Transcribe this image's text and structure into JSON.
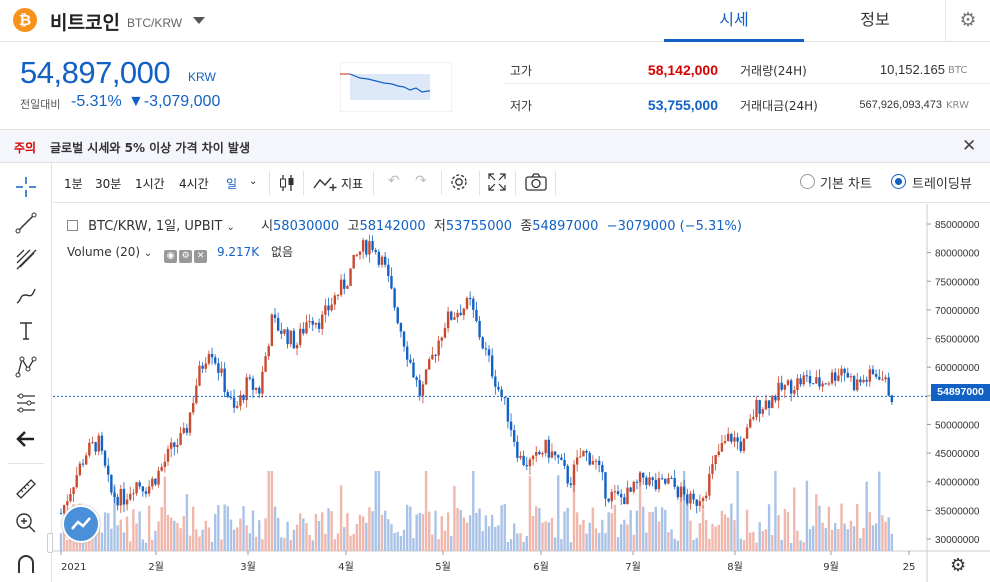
{
  "header": {
    "coin_symbol": "₿",
    "coin_name": "비트코인",
    "pair": "BTC/KRW",
    "tabs": [
      "시세",
      "정보"
    ],
    "active_tab": "시세"
  },
  "ticker": {
    "price": "54,897,000",
    "unit": "KRW",
    "change_label": "전일대비",
    "change_rate": "-5.31%",
    "change_amount": "▼-3,079,000",
    "high_label": "고가",
    "high": "58,142,000",
    "low_label": "저가",
    "low": "53,755,000",
    "volume_label": "거래량(24H)",
    "volume": "10,152.165",
    "volume_unit": "BTC",
    "amount_label": "거래대금(24H)",
    "amount": "567,926,093,473",
    "amount_unit": "KRW"
  },
  "notice": {
    "tag": "주의",
    "text": "글로벌 시세와 5% 이상 가격 차이 발생"
  },
  "toolbar": {
    "timeframes": [
      "1분",
      "30분",
      "1시간",
      "4시간",
      "일"
    ],
    "indicators_label": "지표",
    "chart_type_basic": "기본 차트",
    "chart_type_tv": "트레이딩뷰"
  },
  "legend": {
    "symbol": "BTC/KRW, 1일, UPBIT",
    "open_label": "시",
    "open": "58030000",
    "high_label": "고",
    "high": "58142000",
    "low_label": "저",
    "low": "53755000",
    "close_label": "종",
    "close": "54897000",
    "change": "−3079000 (−5.31%)",
    "volume_label": "Volume (20)",
    "volume_value": "9.217K",
    "volume_extra": "없음"
  },
  "colors": {
    "up": "#c84a31",
    "down": "#1261c4",
    "up_vol": "#f0b7ac",
    "down_vol": "#a9c3e8"
  },
  "chart_data": {
    "type": "candlestick",
    "title": "",
    "y_ticks": [
      "85000000",
      "80000000",
      "75000000",
      "70000000",
      "65000000",
      "60000000",
      "55000000",
      "50000000",
      "45000000",
      "40000000",
      "35000000",
      "30000000"
    ],
    "ylim": [
      28000000,
      88000000
    ],
    "x_ticks": [
      "2021",
      "2월",
      "3월",
      "4월",
      "5월",
      "6월",
      "7월",
      "8월",
      "9월",
      "25"
    ],
    "current_price": "54897000",
    "close_path": [
      34500000,
      40000000,
      45000000,
      47000000,
      38000000,
      37000000,
      40000000,
      39000000,
      42000000,
      46000000,
      48000000,
      58000000,
      64000000,
      58000000,
      52000000,
      57000000,
      56000000,
      68000000,
      66000000,
      64000000,
      69000000,
      68000000,
      72000000,
      75000000,
      80000000,
      82000000,
      78000000,
      70000000,
      62000000,
      55000000,
      62000000,
      68000000,
      70000000,
      71000000,
      64000000,
      58000000,
      52000000,
      44000000,
      43000000,
      46000000,
      44000000,
      40000000,
      45000000,
      44000000,
      38000000,
      37000000,
      38000000,
      41000000,
      39000000,
      40000000,
      38000000,
      36000000,
      39000000,
      45000000,
      48000000,
      46000000,
      53000000,
      54000000,
      56000000,
      57000000,
      58000000,
      57000000,
      58000000,
      60000000,
      57000000,
      58000000,
      59000000,
      55000000
    ]
  }
}
